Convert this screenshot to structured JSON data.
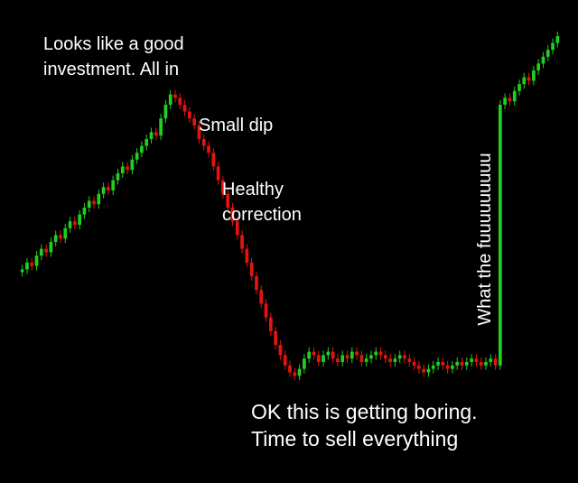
{
  "chart_data": {
    "type": "candlestick",
    "values": [
      32,
      34,
      33,
      36,
      38,
      37,
      40,
      42,
      41,
      44,
      46,
      45,
      48,
      50,
      52,
      51,
      54,
      56,
      55,
      58,
      60,
      62,
      61,
      64,
      66,
      68,
      70,
      72,
      71,
      76,
      80,
      83,
      82,
      80,
      78,
      76,
      74,
      70,
      68,
      66,
      62,
      58,
      54,
      50,
      46,
      42,
      38,
      34,
      30,
      26,
      22,
      18,
      14,
      10,
      7,
      4,
      2,
      1,
      3,
      6,
      8,
      7,
      5,
      7,
      8,
      6,
      5,
      7,
      6,
      8,
      7,
      5,
      6,
      7,
      8,
      7,
      6,
      5,
      6,
      7,
      6,
      5,
      4,
      3,
      2,
      3,
      4,
      5,
      4,
      3,
      4,
      5,
      4,
      5,
      6,
      5,
      4,
      5,
      6,
      4,
      80,
      82,
      81,
      84,
      86,
      88,
      87,
      90,
      92,
      94,
      96,
      98,
      100
    ],
    "ylim": [
      0,
      100
    ],
    "up_color": "#1fd01f",
    "down_color": "#e3140f",
    "annotations": [
      {
        "lines": [
          "Looks like a good",
          "investment. All in"
        ]
      },
      {
        "lines": [
          "Small dip"
        ]
      },
      {
        "lines": [
          "Healthy",
          "correction"
        ]
      },
      {
        "lines": [
          "What the fuuuuuuuuu"
        ]
      },
      {
        "lines": [
          "OK this is getting boring.",
          "Time to sell everything"
        ]
      }
    ]
  }
}
